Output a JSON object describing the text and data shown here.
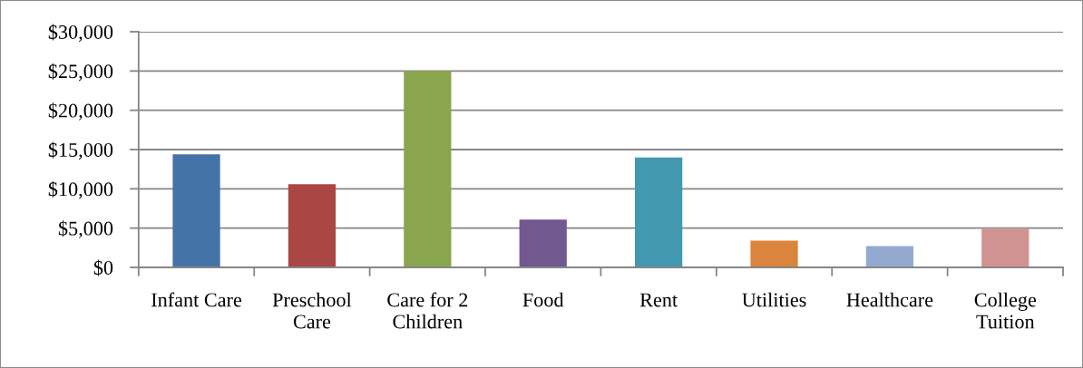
{
  "chart_data": {
    "type": "bar",
    "categories": [
      "Infant Care",
      "Preschool Care",
      "Care for 2 Children",
      "Food",
      "Rent",
      "Utilities",
      "Healthcare",
      "College Tuition"
    ],
    "values": [
      14400,
      10600,
      25000,
      6100,
      14000,
      3400,
      2700,
      4900
    ],
    "colors": [
      "#4572a7",
      "#aa4643",
      "#89a54e",
      "#71588f",
      "#4198af",
      "#db843d",
      "#93a9cf",
      "#d19392"
    ],
    "ylim": [
      0,
      30000
    ],
    "yticks": [
      {
        "value": 0,
        "label": "$0"
      },
      {
        "value": 5000,
        "label": "$5,000"
      },
      {
        "value": 10000,
        "label": "$10,000"
      },
      {
        "value": 15000,
        "label": "$15,000"
      },
      {
        "value": 20000,
        "label": "$20,000"
      },
      {
        "value": 25000,
        "label": "$25,000"
      },
      {
        "value": 30000,
        "label": "$30,000"
      }
    ],
    "grid": "y"
  }
}
